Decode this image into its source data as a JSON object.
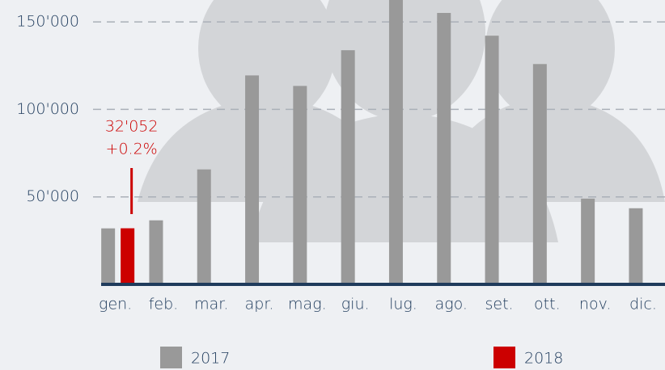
{
  "chart_data": {
    "type": "bar",
    "categories": [
      "gen.",
      "feb.",
      "mar.",
      "apr.",
      "mag.",
      "giu.",
      "lug.",
      "ago.",
      "set.",
      "ott.",
      "nov.",
      "dic."
    ],
    "series": [
      {
        "name": "2017",
        "color": "#999999",
        "values": [
          32000,
          36600,
          65700,
          119400,
          113400,
          133800,
          162500,
          155100,
          142100,
          125900,
          49000,
          43500
        ]
      },
      {
        "name": "2018",
        "color": "#cc0000",
        "values": [
          32052,
          null,
          null,
          null,
          null,
          null,
          null,
          null,
          null,
          null,
          null,
          null
        ],
        "value_labels": [
          "32'052",
          null,
          null,
          null,
          null,
          null,
          null,
          null,
          null,
          null,
          null,
          null
        ]
      }
    ],
    "annotation": "+0.2%",
    "ylim": [
      0,
      162500
    ],
    "yticks": [
      {
        "value": 50000,
        "label": "50'000"
      },
      {
        "value": 100000,
        "label": "100'000"
      },
      {
        "value": 150000,
        "label": "150'000"
      }
    ],
    "grid": true
  }
}
